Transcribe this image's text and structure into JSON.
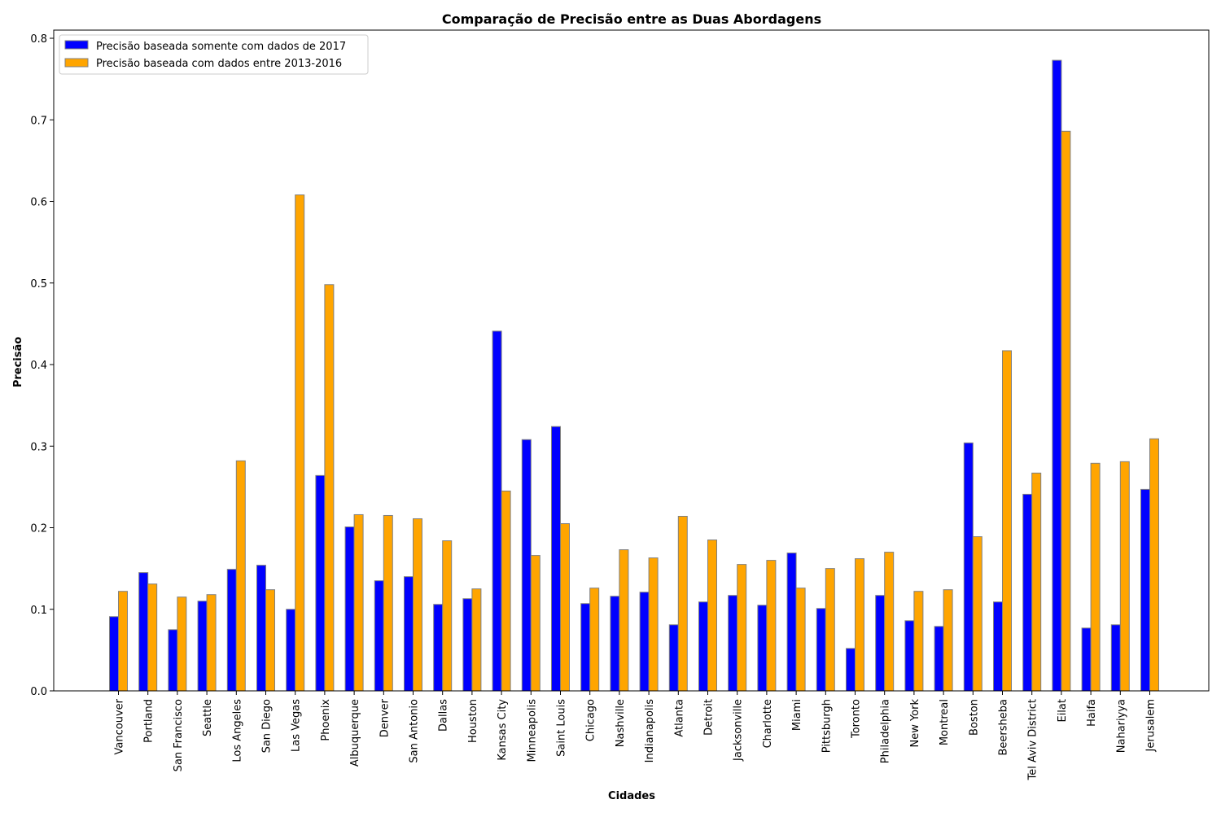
{
  "chart_data": {
    "type": "bar",
    "title": "Comparação de Precisão entre as Duas Abordagens",
    "xlabel": "Cidades",
    "ylabel": "Precisão",
    "ylim": [
      0,
      0.81
    ],
    "yticks": [
      "0.0",
      "0.1",
      "0.2",
      "0.3",
      "0.4",
      "0.5",
      "0.6",
      "0.7",
      "0.8"
    ],
    "grid": false,
    "legend_position": "top-left",
    "categories": [
      "Vancouver",
      "Portland",
      "San Francisco",
      "Seattle",
      "Los Angeles",
      "San Diego",
      "Las Vegas",
      "Phoenix",
      "Albuquerque",
      "Denver",
      "San Antonio",
      "Dallas",
      "Houston",
      "Kansas City",
      "Minneapolis",
      "Saint Louis",
      "Chicago",
      "Nashville",
      "Indianapolis",
      "Atlanta",
      "Detroit",
      "Jacksonville",
      "Charlotte",
      "Miami",
      "Pittsburgh",
      "Toronto",
      "Philadelphia",
      "New York",
      "Montreal",
      "Boston",
      "Beersheba",
      "Tel Aviv District",
      "Eilat",
      "Haifa",
      "Nahariyya",
      "Jerusalem"
    ],
    "series": [
      {
        "name": "Precisão baseada somente com dados de 2017",
        "color": "#0000ff",
        "values": [
          0.091,
          0.145,
          0.075,
          0.11,
          0.149,
          0.154,
          0.1,
          0.264,
          0.201,
          0.135,
          0.14,
          0.106,
          0.113,
          0.441,
          0.308,
          0.324,
          0.107,
          0.116,
          0.121,
          0.081,
          0.109,
          0.117,
          0.105,
          0.169,
          0.101,
          0.052,
          0.117,
          0.086,
          0.079,
          0.304,
          0.109,
          0.241,
          0.773,
          0.077,
          0.081,
          0.247
        ]
      },
      {
        "name": "Precisão baseada com dados entre 2013-2016",
        "color": "#ffa500",
        "values": [
          0.122,
          0.131,
          0.115,
          0.118,
          0.282,
          0.124,
          0.608,
          0.498,
          0.216,
          0.215,
          0.211,
          0.184,
          0.125,
          0.245,
          0.166,
          0.205,
          0.126,
          0.173,
          0.163,
          0.214,
          0.185,
          0.155,
          0.16,
          0.126,
          0.15,
          0.162,
          0.17,
          0.122,
          0.124,
          0.189,
          0.417,
          0.267,
          0.686,
          0.279,
          0.281,
          0.309
        ]
      }
    ]
  }
}
